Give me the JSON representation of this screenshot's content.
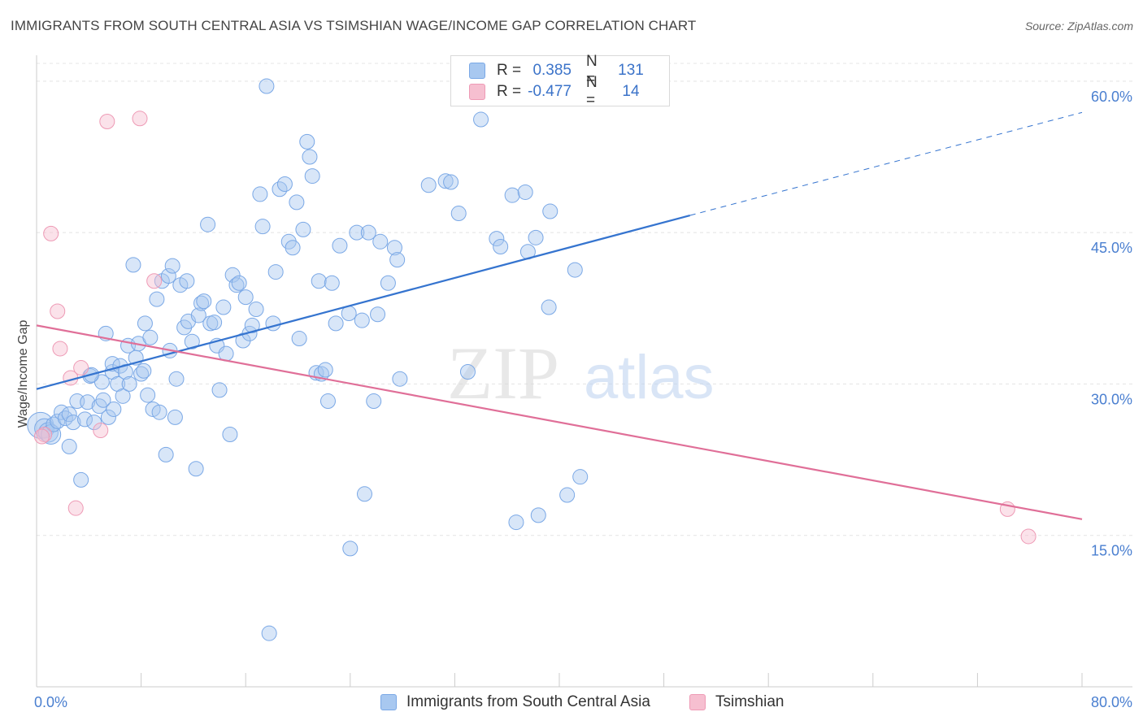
{
  "header": {
    "title": "IMMIGRANTS FROM SOUTH CENTRAL ASIA VS TSIMSHIAN WAGE/INCOME GAP CORRELATION CHART",
    "source": "Source: ZipAtlas.com"
  },
  "watermark": {
    "zip": "ZIP",
    "atlas": "atlas"
  },
  "legend": {
    "rows": [
      {
        "r_label": "R =",
        "r_value": "0.385",
        "n_label": "N =",
        "n_value": "131",
        "color": "#a8c8f0",
        "border": "#7aa8e6"
      },
      {
        "r_label": "R =",
        "r_value": "-0.477",
        "n_label": "N =",
        "n_value": "14",
        "color": "#f6bfd0",
        "border": "#ee9ab5"
      }
    ]
  },
  "bottom_legend": {
    "series1": "Immigrants from South Central Asia",
    "series2": "Tsimshian"
  },
  "chart_data": {
    "type": "scatter",
    "title": "IMMIGRANTS FROM SOUTH CENTRAL ASIA VS TSIMSHIAN WAGE/INCOME GAP CORRELATION CHART",
    "xlabel": "",
    "ylabel": "Wage/Income Gap",
    "xlim": [
      0,
      80
    ],
    "ylim": [
      0,
      62
    ],
    "x_ticks": [
      "0.0%",
      "80.0%"
    ],
    "y_ticks": [
      {
        "value": 15,
        "label": "15.0%"
      },
      {
        "value": 30,
        "label": "30.0%"
      },
      {
        "value": 45,
        "label": "45.0%"
      },
      {
        "value": 60,
        "label": "60.0%"
      }
    ],
    "grid": true,
    "legend_position": "top-center",
    "series": [
      {
        "name": "Immigrants from South Central Asia",
        "color": "#7aa8e6",
        "fill": "rgba(168,200,240,0.45)",
        "trend": {
          "x0": 0,
          "y0": 29.5,
          "x1": 50,
          "y1": 46.7,
          "dash_to_x": 80,
          "dash_to_y": 56.9,
          "color": "#3574cf"
        },
        "points": [
          [
            0.3,
            25.9
          ],
          [
            0.6,
            25.6
          ],
          [
            0.9,
            25.2
          ],
          [
            1.1,
            25.0
          ],
          [
            1.3,
            26.0
          ],
          [
            1.6,
            26.3
          ],
          [
            1.9,
            27.2
          ],
          [
            2.2,
            26.6
          ],
          [
            2.5,
            27.0
          ],
          [
            2.8,
            26.2
          ],
          [
            2.5,
            23.8
          ],
          [
            3.1,
            28.3
          ],
          [
            3.4,
            20.5
          ],
          [
            3.7,
            26.5
          ],
          [
            3.9,
            28.2
          ],
          [
            4.1,
            30.8
          ],
          [
            4.4,
            26.2
          ],
          [
            4.8,
            27.8
          ],
          [
            5.1,
            28.4
          ],
          [
            5.0,
            30.2
          ],
          [
            5.5,
            26.7
          ],
          [
            5.3,
            35.0
          ],
          [
            5.9,
            27.5
          ],
          [
            5.8,
            31.2
          ],
          [
            5.8,
            32.0
          ],
          [
            6.2,
            30.0
          ],
          [
            6.4,
            31.8
          ],
          [
            6.6,
            28.8
          ],
          [
            6.8,
            31.2
          ],
          [
            7.0,
            33.8
          ],
          [
            7.1,
            30.0
          ],
          [
            7.4,
            41.8
          ],
          [
            7.6,
            32.6
          ],
          [
            7.8,
            34.0
          ],
          [
            8.0,
            31.0
          ],
          [
            8.2,
            31.3
          ],
          [
            8.3,
            36.0
          ],
          [
            8.5,
            28.9
          ],
          [
            8.7,
            34.6
          ],
          [
            8.9,
            27.5
          ],
          [
            9.2,
            38.4
          ],
          [
            9.4,
            27.2
          ],
          [
            9.6,
            40.2
          ],
          [
            9.9,
            23.0
          ],
          [
            10.1,
            40.7
          ],
          [
            10.2,
            33.3
          ],
          [
            10.4,
            41.7
          ],
          [
            10.6,
            26.7
          ],
          [
            10.7,
            30.5
          ],
          [
            11.0,
            39.8
          ],
          [
            11.3,
            35.6
          ],
          [
            11.5,
            40.2
          ],
          [
            11.6,
            36.2
          ],
          [
            11.9,
            34.2
          ],
          [
            12.2,
            21.6
          ],
          [
            12.4,
            36.8
          ],
          [
            12.6,
            38.0
          ],
          [
            12.8,
            38.2
          ],
          [
            13.1,
            45.8
          ],
          [
            13.3,
            36.0
          ],
          [
            13.6,
            36.1
          ],
          [
            13.8,
            33.8
          ],
          [
            14.0,
            29.4
          ],
          [
            14.3,
            37.6
          ],
          [
            14.5,
            33.0
          ],
          [
            14.8,
            25.0
          ],
          [
            15.0,
            40.8
          ],
          [
            15.3,
            39.8
          ],
          [
            15.5,
            40.0
          ],
          [
            15.8,
            34.3
          ],
          [
            16.0,
            38.6
          ],
          [
            16.3,
            35.0
          ],
          [
            16.5,
            35.8
          ],
          [
            16.8,
            37.4
          ],
          [
            17.1,
            48.8
          ],
          [
            17.3,
            45.6
          ],
          [
            17.6,
            59.5
          ],
          [
            17.8,
            5.3
          ],
          [
            18.1,
            36.0
          ],
          [
            18.3,
            41.1
          ],
          [
            18.6,
            49.3
          ],
          [
            19.0,
            49.8
          ],
          [
            19.3,
            44.1
          ],
          [
            19.6,
            43.5
          ],
          [
            19.9,
            48.0
          ],
          [
            20.1,
            34.5
          ],
          [
            20.4,
            45.3
          ],
          [
            20.7,
            54.0
          ],
          [
            20.9,
            52.5
          ],
          [
            21.1,
            50.6
          ],
          [
            21.4,
            31.1
          ],
          [
            21.6,
            40.2
          ],
          [
            21.8,
            31.0
          ],
          [
            22.1,
            31.4
          ],
          [
            22.3,
            28.3
          ],
          [
            22.6,
            40.0
          ],
          [
            22.9,
            36.0
          ],
          [
            23.2,
            43.7
          ],
          [
            23.9,
            37.0
          ],
          [
            24.5,
            45.0
          ],
          [
            24.9,
            36.3
          ],
          [
            25.1,
            19.1
          ],
          [
            25.4,
            45.0
          ],
          [
            25.8,
            28.3
          ],
          [
            26.1,
            36.9
          ],
          [
            24.0,
            13.7
          ],
          [
            26.3,
            44.1
          ],
          [
            26.9,
            40.0
          ],
          [
            27.4,
            43.5
          ],
          [
            27.6,
            42.3
          ],
          [
            27.8,
            30.5
          ],
          [
            30.0,
            49.7
          ],
          [
            31.3,
            50.1
          ],
          [
            31.7,
            50.0
          ],
          [
            32.3,
            46.9
          ],
          [
            33.0,
            31.2
          ],
          [
            34.0,
            56.2
          ],
          [
            35.2,
            44.4
          ],
          [
            35.5,
            43.6
          ],
          [
            36.4,
            48.7
          ],
          [
            36.7,
            16.3
          ],
          [
            37.4,
            49.0
          ],
          [
            37.6,
            43.1
          ],
          [
            38.2,
            44.5
          ],
          [
            38.4,
            17.0
          ],
          [
            39.2,
            37.6
          ],
          [
            39.3,
            47.1
          ],
          [
            40.6,
            19.0
          ],
          [
            41.2,
            41.3
          ],
          [
            41.6,
            20.8
          ],
          [
            4.2,
            30.9
          ]
        ]
      },
      {
        "name": "Tsimshian",
        "color": "#ee9ab5",
        "fill": "rgba(246,191,208,0.45)",
        "trend": {
          "x0": 0,
          "y0": 35.8,
          "x1": 80,
          "y1": 16.6,
          "color": "#e06f98"
        },
        "points": [
          [
            0.6,
            25.0
          ],
          [
            1.1,
            44.9
          ],
          [
            1.6,
            37.2
          ],
          [
            1.8,
            33.5
          ],
          [
            2.6,
            30.6
          ],
          [
            3.0,
            17.7
          ],
          [
            3.4,
            31.6
          ],
          [
            4.9,
            25.4
          ],
          [
            5.4,
            56.0
          ],
          [
            7.9,
            56.3
          ],
          [
            9.0,
            40.2
          ],
          [
            74.3,
            17.6
          ],
          [
            75.9,
            14.9
          ],
          [
            0.4,
            24.8
          ]
        ]
      }
    ]
  }
}
